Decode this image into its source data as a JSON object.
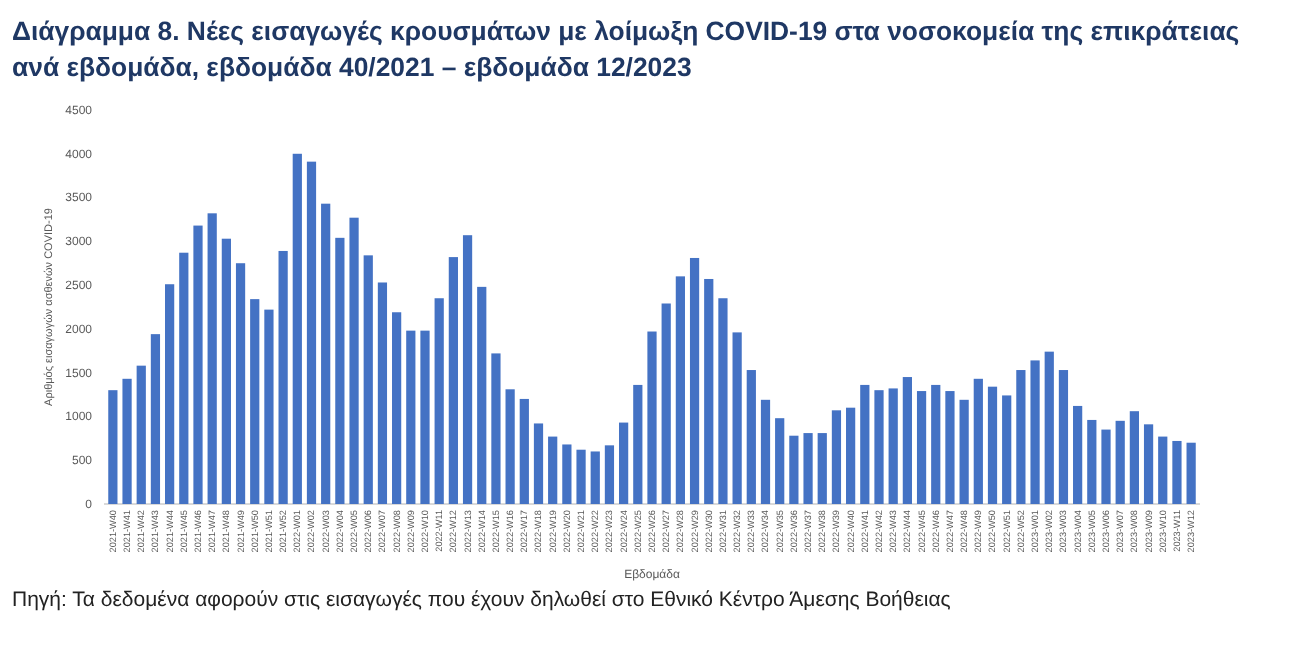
{
  "chart_data": {
    "type": "bar",
    "title": "Διάγραμμα 8. Νέες εισαγωγές κρουσμάτων με λοίμωξη COVID-19 στα νοσοκομεία της επικράτειας ανά εβδομάδα, εβδομάδα 40/2021 – εβδομάδα 12/2023",
    "xlabel": "Εβδομάδα",
    "ylabel": "Αριθμός εισαγωγών ασθενών COVID-19",
    "annotations": [
      "Πηγή: Τα δεδομένα αφορούν στις εισαγωγές που έχουν δηλωθεί στο Εθνικό Κέντρο Άμεσης Βοήθειας"
    ],
    "categories": [
      "2021-W40",
      "2021-W41",
      "2021-W42",
      "2021-W43",
      "2021-W44",
      "2021-W45",
      "2021-W46",
      "2021-W47",
      "2021-W48",
      "2021-W49",
      "2021-W50",
      "2021-W51",
      "2021-W52",
      "2022-W01",
      "2022-W02",
      "2022-W03",
      "2022-W04",
      "2022-W05",
      "2022-W06",
      "2022-W07",
      "2022-W08",
      "2022-W09",
      "2022-W10",
      "2022-W11",
      "2022-W12",
      "2022-W13",
      "2022-W14",
      "2022-W15",
      "2022-W16",
      "2022-W17",
      "2022-W18",
      "2022-W19",
      "2022-W20",
      "2022-W21",
      "2022-W22",
      "2022-W23",
      "2022-W24",
      "2022-W25",
      "2022-W26",
      "2022-W27",
      "2022-W28",
      "2022-W29",
      "2022-W30",
      "2022-W31",
      "2022-W32",
      "2022-W33",
      "2022-W34",
      "2022-W35",
      "2022-W36",
      "2022-W37",
      "2022-W38",
      "2022-W39",
      "2022-W40",
      "2022-W41",
      "2022-W42",
      "2022-W43",
      "2022-W44",
      "2022-W45",
      "2022-W46",
      "2022-W47",
      "2022-W48",
      "2022-W49",
      "2022-W50",
      "2022-W51",
      "2022-W52",
      "2023-W01",
      "2023-W02",
      "2023-W03",
      "2023-W04",
      "2023-W05",
      "2023-W06",
      "2023-W07",
      "2023-W08",
      "2023-W09",
      "2023-W10",
      "2023-W11",
      "2023-W12"
    ],
    "values": [
      1300,
      1430,
      1580,
      1940,
      2510,
      2870,
      3180,
      3320,
      3030,
      2750,
      2340,
      2220,
      2890,
      4000,
      3910,
      3430,
      3040,
      3270,
      2840,
      2530,
      2190,
      1980,
      1980,
      2350,
      2820,
      3070,
      2480,
      1720,
      1310,
      1200,
      920,
      770,
      680,
      620,
      600,
      670,
      930,
      1360,
      1970,
      2290,
      2600,
      2810,
      2570,
      2350,
      1960,
      1530,
      1190,
      980,
      780,
      810,
      810,
      1070,
      1100,
      1360,
      1300,
      1320,
      1450,
      1290,
      1360,
      1290,
      1190,
      1430,
      1340,
      1240,
      1530,
      1640,
      1740,
      1530,
      1120,
      960,
      850,
      950,
      1060,
      910,
      770,
      720,
      700
    ],
    "color": "#4472c4",
    "ylim": [
      0,
      4500
    ],
    "yticks": [
      0,
      500,
      1000,
      1500,
      2000,
      2500,
      3000,
      3500,
      4000,
      4500
    ],
    "grid": false
  }
}
